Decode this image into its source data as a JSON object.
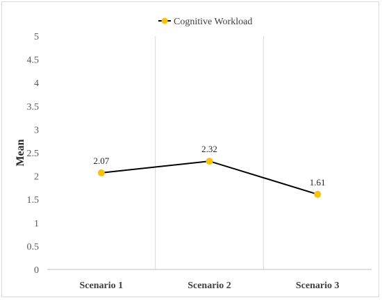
{
  "chart_data": {
    "type": "line",
    "categories": [
      "Scenario 1",
      "Scenario 2",
      "Scenario 3"
    ],
    "series": [
      {
        "name": "Cognitive Workload",
        "values": [
          2.07,
          2.32,
          1.61
        ]
      }
    ],
    "data_labels": [
      "2.07",
      "2.32",
      "1.61"
    ],
    "ylabel": "Mean",
    "xlabel": "",
    "title": "",
    "ylim": [
      0,
      5
    ],
    "yticks": [
      "0",
      "0.5",
      "1",
      "1.5",
      "2",
      "2.5",
      "3",
      "3.5",
      "4",
      "4.5",
      "5"
    ],
    "grid": "vertical",
    "legend_position": "top-center",
    "colors": {
      "line": "#000000",
      "marker": "#ffc000",
      "grid": "#d9d9d9"
    }
  }
}
